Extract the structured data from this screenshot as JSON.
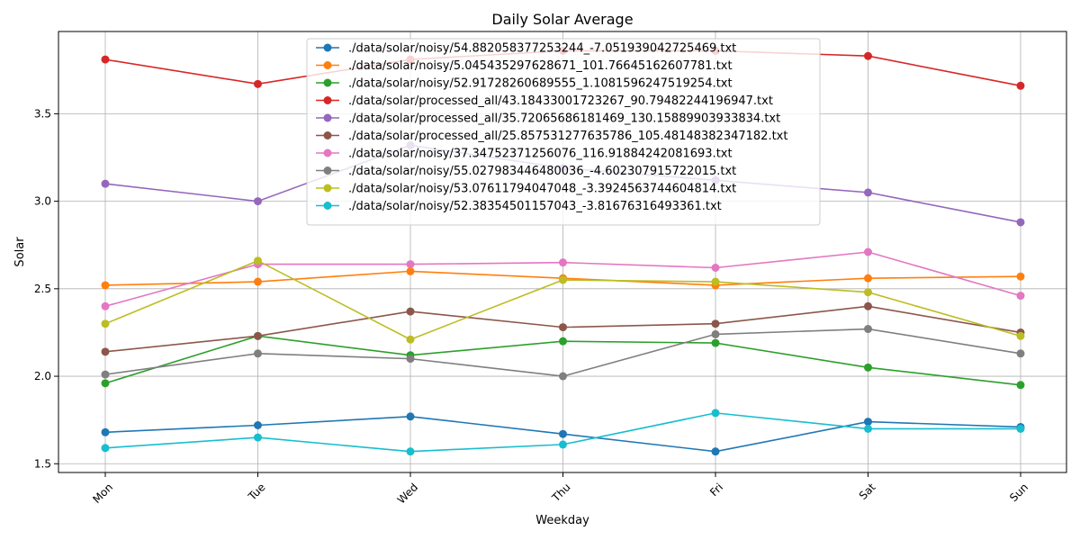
{
  "chart_data": {
    "type": "line",
    "title": "Daily Solar Average",
    "xlabel": "Weekday",
    "ylabel": "Solar",
    "categories": [
      "Mon",
      "Tue",
      "Wed",
      "Thu",
      "Fri",
      "Sat",
      "Sun"
    ],
    "ylim": [
      1.45,
      3.97
    ],
    "yticks": [
      "1.5",
      "2.0",
      "2.5",
      "3.0",
      "3.5"
    ],
    "grid": true,
    "legend_position": "upper-center",
    "series": [
      {
        "name": "./data/solar/noisy/54.882058377253244_-7.051939042725469.txt",
        "color": "#1f77b4",
        "values": [
          1.68,
          1.72,
          1.77,
          1.67,
          1.57,
          1.74,
          1.71
        ]
      },
      {
        "name": "./data/solar/noisy/5.045435297628671_101.76645162607781.txt",
        "color": "#ff7f0e",
        "values": [
          2.52,
          2.54,
          2.6,
          2.56,
          2.52,
          2.56,
          2.57
        ]
      },
      {
        "name": "./data/solar/noisy/52.91728260689555_1.1081596247519254.txt",
        "color": "#2ca02c",
        "values": [
          1.96,
          2.23,
          2.12,
          2.2,
          2.19,
          2.05,
          1.95
        ]
      },
      {
        "name": "./data/solar/processed_all/43.18433001723267_90.79482244196947.txt",
        "color": "#d62728",
        "values": [
          3.81,
          3.67,
          3.81,
          3.86,
          3.86,
          3.83,
          3.66
        ]
      },
      {
        "name": "./data/solar/processed_all/35.72065686181469_130.15889903933834.txt",
        "color": "#9467bd",
        "values": [
          3.1,
          3.0,
          3.32,
          3.19,
          3.12,
          3.05,
          2.88
        ]
      },
      {
        "name": "./data/solar/processed_all/25.857531277635786_105.48148382347182.txt",
        "color": "#8c564b",
        "values": [
          2.14,
          2.23,
          2.37,
          2.28,
          2.3,
          2.4,
          2.25
        ]
      },
      {
        "name": "./data/solar/noisy/37.34752371256076_116.91884242081693.txt",
        "color": "#e377c2",
        "values": [
          2.4,
          2.64,
          2.64,
          2.65,
          2.62,
          2.71,
          2.46
        ]
      },
      {
        "name": "./data/solar/noisy/55.027983446480036_-4.602307915722015.txt",
        "color": "#7f7f7f",
        "values": [
          2.01,
          2.13,
          2.1,
          2.0,
          2.24,
          2.27,
          2.13
        ]
      },
      {
        "name": "./data/solar/noisy/53.07611794047048_-3.3924563744604814.txt",
        "color": "#bcbd22",
        "values": [
          2.3,
          2.66,
          2.21,
          2.55,
          2.54,
          2.48,
          2.23
        ]
      },
      {
        "name": "./data/solar/noisy/52.38354501157043_-3.81676316493361.txt",
        "color": "#17becf",
        "values": [
          1.59,
          1.65,
          1.57,
          1.61,
          1.79,
          1.7,
          1.7
        ]
      }
    ]
  }
}
